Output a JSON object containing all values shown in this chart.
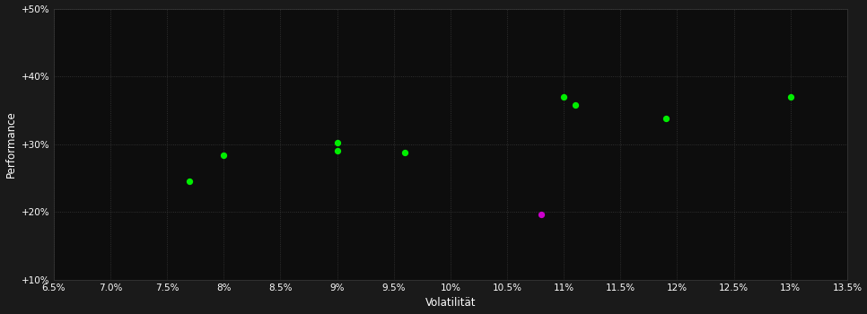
{
  "background_color": "#1a1a1a",
  "plot_bg_color": "#0d0d0d",
  "grid_color": "#3a3a3a",
  "xlabel": "Volatilität",
  "ylabel": "Performance",
  "xlim": [
    0.065,
    0.135
  ],
  "ylim": [
    0.1,
    0.5
  ],
  "xticks": [
    0.065,
    0.07,
    0.075,
    0.08,
    0.085,
    0.09,
    0.095,
    0.1,
    0.105,
    0.11,
    0.115,
    0.12,
    0.125,
    0.13,
    0.135
  ],
  "yticks": [
    0.1,
    0.2,
    0.3,
    0.4,
    0.5
  ],
  "green_points": [
    [
      0.077,
      0.245
    ],
    [
      0.08,
      0.283
    ],
    [
      0.09,
      0.302
    ],
    [
      0.09,
      0.29
    ],
    [
      0.096,
      0.287
    ],
    [
      0.11,
      0.37
    ],
    [
      0.111,
      0.358
    ],
    [
      0.119,
      0.338
    ],
    [
      0.13,
      0.37
    ]
  ],
  "magenta_points": [
    [
      0.108,
      0.196
    ]
  ],
  "green_color": "#00ee00",
  "magenta_color": "#cc00cc",
  "point_size": 18,
  "font_color": "#ffffff",
  "tick_fontsize": 7.5,
  "label_fontsize": 8.5
}
